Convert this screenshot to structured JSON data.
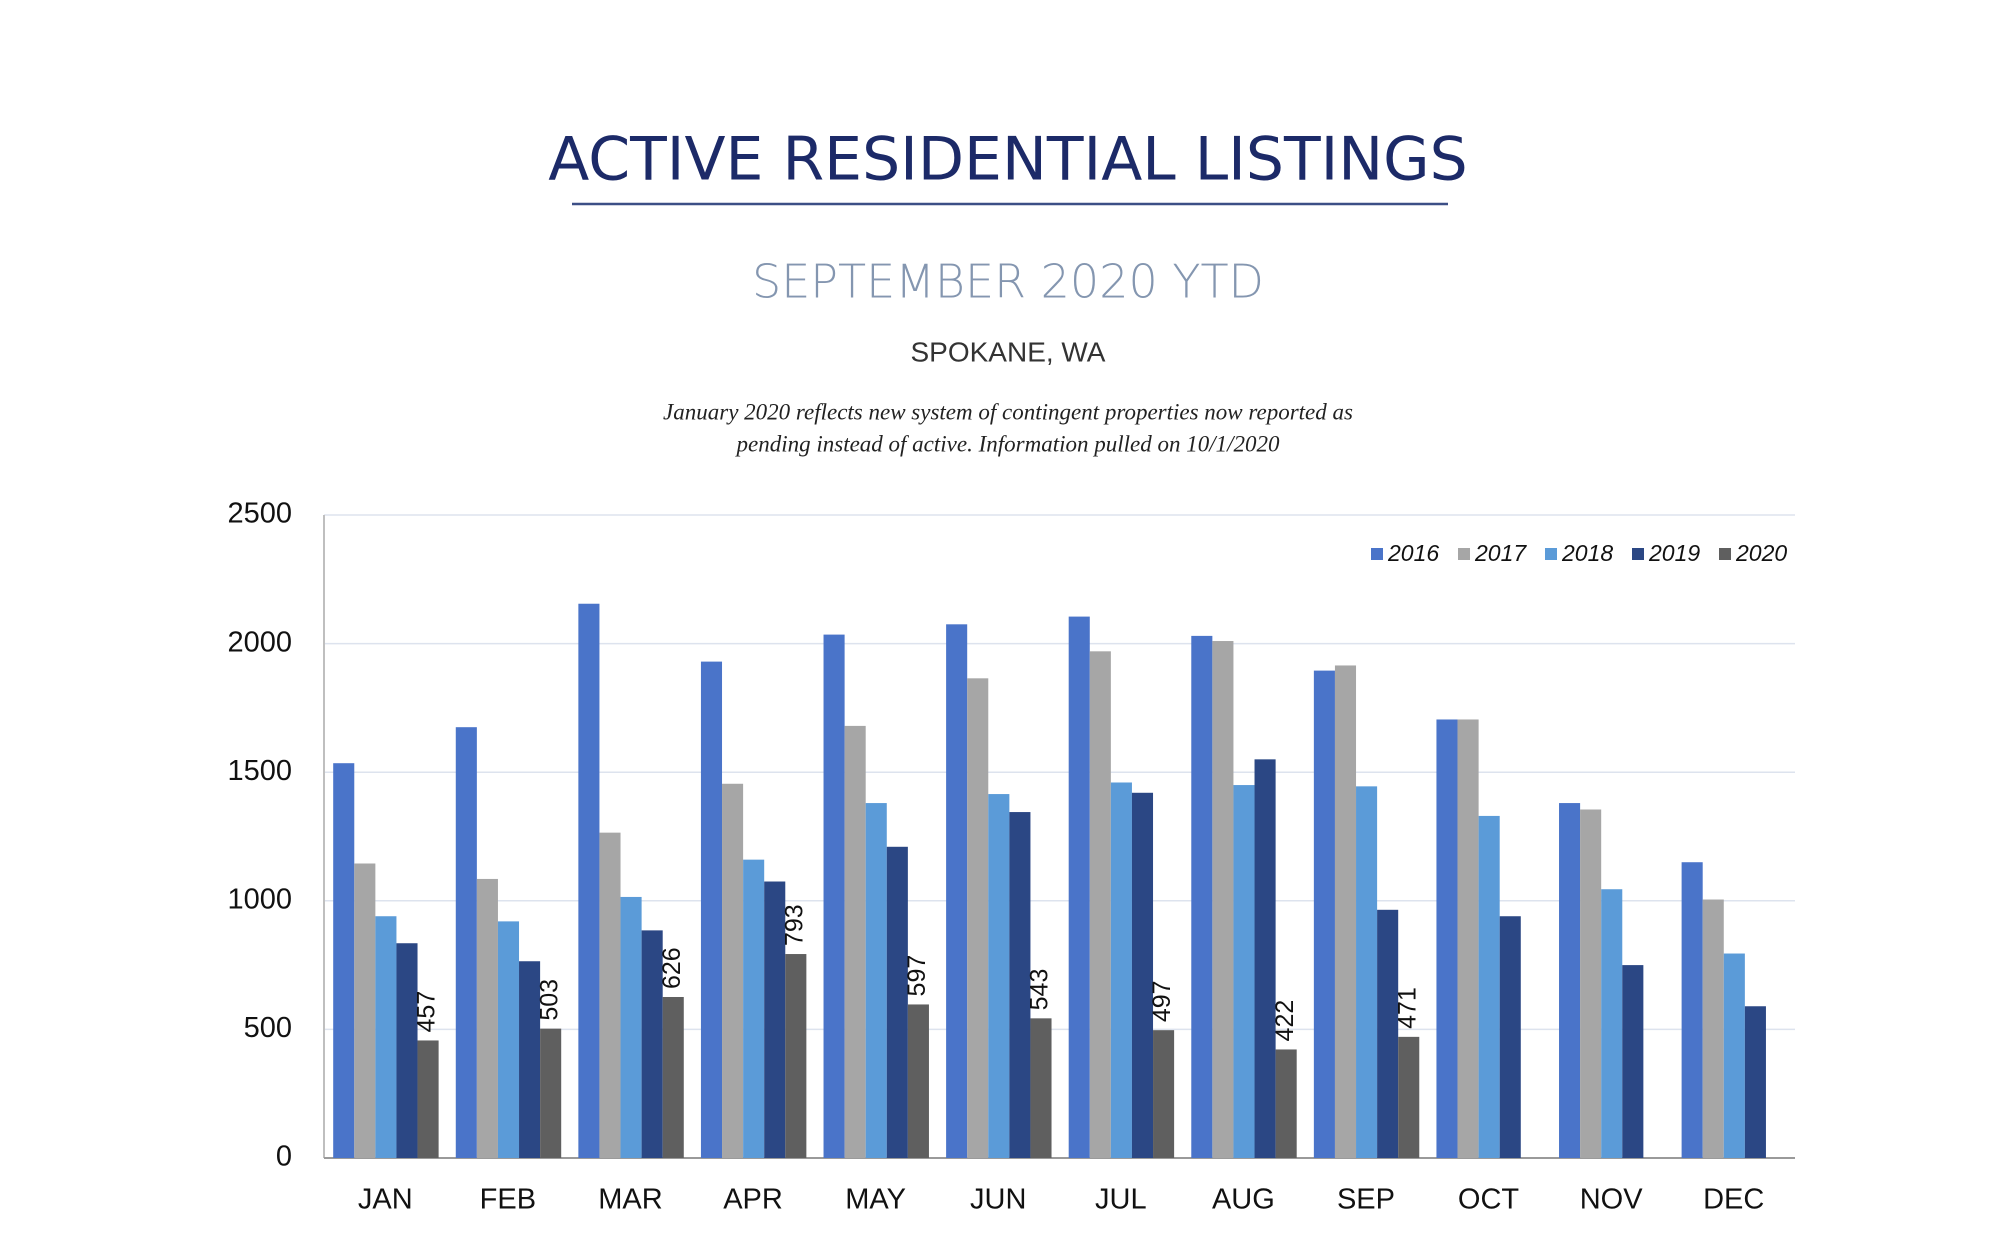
{
  "chart_data": {
    "type": "bar",
    "title": "ACTIVE RESIDENTIAL LISTINGS",
    "subtitle": "SEPTEMBER 2020 YTD",
    "location": "SPOKANE, WA",
    "note": [
      "January 2020 reflects new system of contingent properties now reported as",
      "pending instead of active.  Information pulled on 10/1/2020"
    ],
    "categories": [
      "JAN",
      "FEB",
      "MAR",
      "APR",
      "MAY",
      "JUN",
      "JUL",
      "AUG",
      "SEP",
      "OCT",
      "NOV",
      "DEC"
    ],
    "series": [
      {
        "name": "2016",
        "color": "#4a74c9",
        "values": [
          1535,
          1675,
          2155,
          1930,
          2035,
          2075,
          2105,
          2030,
          1895,
          1705,
          1380,
          1150
        ]
      },
      {
        "name": "2017",
        "color": "#a6a6a6",
        "values": [
          1145,
          1085,
          1265,
          1455,
          1680,
          1865,
          1970,
          2010,
          1915,
          1705,
          1355,
          1005
        ]
      },
      {
        "name": "2018",
        "color": "#5b9bd8",
        "values": [
          940,
          920,
          1015,
          1160,
          1380,
          1415,
          1460,
          1450,
          1445,
          1330,
          1045,
          795
        ]
      },
      {
        "name": "2019",
        "color": "#2b4784",
        "values": [
          835,
          765,
          885,
          1075,
          1210,
          1345,
          1420,
          1550,
          965,
          940,
          750,
          590
        ]
      },
      {
        "name": "2020",
        "color": "#5f5f5f",
        "values": [
          457,
          503,
          626,
          793,
          597,
          543,
          497,
          422,
          471,
          null,
          null,
          null
        ],
        "data_labels": true
      }
    ],
    "ylim": [
      0,
      2500
    ],
    "yticks": [
      0,
      500,
      1000,
      1500,
      2000,
      2500
    ],
    "grid": true,
    "legend": "top-right"
  }
}
